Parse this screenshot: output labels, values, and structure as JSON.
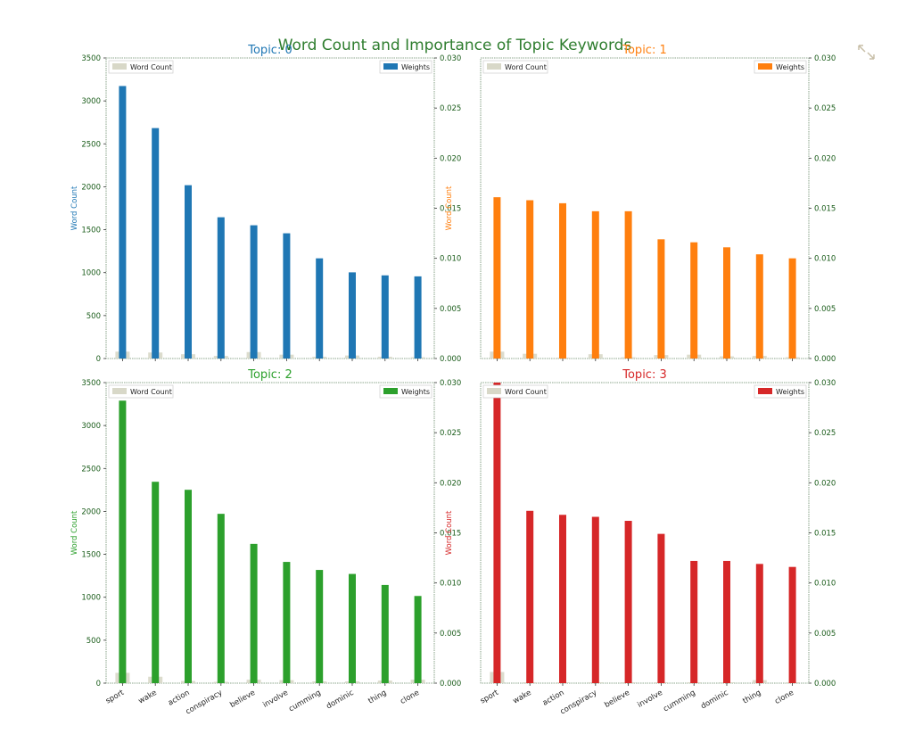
{
  "figure_title": "Word Count and Importance of Topic Keywords",
  "figure_title_color": "#2e7d2e",
  "corner_icon": "shrink-arrows-icon",
  "chart_data": [
    {
      "type": "bar",
      "title": "Topic: 0",
      "color": "#1f77b4",
      "categories": [
        "sport",
        "wake",
        "action",
        "conspiracy",
        "believe",
        "involve",
        "cumming",
        "dominic",
        "thing",
        "clone"
      ],
      "series": [
        {
          "name": "Word Count",
          "axis": "left",
          "color": "#d8d8c8",
          "values": [
            80,
            70,
            50,
            30,
            75,
            45,
            20,
            35,
            20,
            15
          ]
        },
        {
          "name": "Weights",
          "axis": "right",
          "values": [
            0.0272,
            0.023,
            0.0173,
            0.0141,
            0.0133,
            0.0125,
            0.01,
            0.0086,
            0.0083,
            0.0082
          ]
        }
      ],
      "ylabel": "Word Count",
      "ylim": [
        0,
        3500
      ],
      "yticks": [
        "0",
        "500",
        "1000",
        "1500",
        "2000",
        "2500",
        "3000",
        "3500"
      ],
      "y2lim": [
        0,
        0.03
      ],
      "y2ticks": [
        "0.000",
        "0.005",
        "0.010",
        "0.015",
        "0.020",
        "0.025",
        "0.030"
      ],
      "show_xticklabels": false,
      "legend": {
        "left": "Word Count",
        "right": "Weights"
      }
    },
    {
      "type": "bar",
      "title": "Topic: 1",
      "color": "#ff7f0e",
      "categories": [
        "sport",
        "wake",
        "action",
        "conspiracy",
        "believe",
        "involve",
        "cumming",
        "dominic",
        "thing",
        "clone"
      ],
      "series": [
        {
          "name": "Word Count",
          "axis": "left",
          "color": "#d8d8c8",
          "values": [
            80,
            55,
            10,
            50,
            15,
            40,
            45,
            25,
            30,
            15
          ]
        },
        {
          "name": "Weights",
          "axis": "right",
          "values": [
            0.0161,
            0.0158,
            0.0155,
            0.0147,
            0.0147,
            0.0119,
            0.0116,
            0.0111,
            0.0104,
            0.01
          ]
        }
      ],
      "ylabel": "Word Count",
      "ylim": [
        0,
        3500
      ],
      "yticks": [],
      "y2lim": [
        0,
        0.03
      ],
      "y2ticks": [
        "0.000",
        "0.005",
        "0.010",
        "0.015",
        "0.020",
        "0.025",
        "0.030"
      ],
      "show_xticklabels": false,
      "legend": {
        "left": "Word Count",
        "right": "Weights"
      }
    },
    {
      "type": "bar",
      "title": "Topic: 2",
      "color": "#2ca02c",
      "categories": [
        "sport",
        "wake",
        "action",
        "conspiracy",
        "believe",
        "involve",
        "cumming",
        "dominic",
        "thing",
        "clone"
      ],
      "series": [
        {
          "name": "Word Count",
          "axis": "left",
          "color": "#d8d8c8",
          "values": [
            120,
            75,
            25,
            15,
            40,
            35,
            20,
            20,
            30,
            40
          ]
        },
        {
          "name": "Weights",
          "axis": "right",
          "values": [
            0.0282,
            0.0201,
            0.0193,
            0.0169,
            0.0139,
            0.0121,
            0.0113,
            0.0109,
            0.0098,
            0.0087
          ]
        }
      ],
      "ylabel": "Word Count",
      "ylim": [
        0,
        3500
      ],
      "yticks": [
        "0",
        "500",
        "1000",
        "1500",
        "2000",
        "2500",
        "3000",
        "3500"
      ],
      "y2lim": [
        0,
        0.03
      ],
      "y2ticks": [
        "0.000",
        "0.005",
        "0.010",
        "0.015",
        "0.020",
        "0.025",
        "0.030"
      ],
      "show_xticklabels": true,
      "legend": {
        "left": "Word Count",
        "right": "Weights"
      }
    },
    {
      "type": "bar",
      "title": "Topic: 3",
      "color": "#d62728",
      "categories": [
        "sport",
        "wake",
        "action",
        "conspiracy",
        "believe",
        "involve",
        "cumming",
        "dominic",
        "thing",
        "clone"
      ],
      "series": [
        {
          "name": "Word Count",
          "axis": "left",
          "color": "#d8d8c8",
          "values": [
            130,
            10,
            10,
            10,
            10,
            10,
            10,
            10,
            35,
            10
          ]
        },
        {
          "name": "Weights",
          "axis": "right",
          "values": [
            0.03,
            0.0172,
            0.0168,
            0.0166,
            0.0162,
            0.0149,
            0.0122,
            0.0122,
            0.0119,
            0.0116
          ]
        }
      ],
      "ylabel": "Word Count",
      "ylim": [
        0,
        3500
      ],
      "yticks": [],
      "y2lim": [
        0,
        0.03
      ],
      "y2ticks": [
        "0.000",
        "0.005",
        "0.010",
        "0.015",
        "0.020",
        "0.025",
        "0.030"
      ],
      "show_xticklabels": true,
      "legend": {
        "left": "Word Count",
        "right": "Weights"
      }
    }
  ]
}
